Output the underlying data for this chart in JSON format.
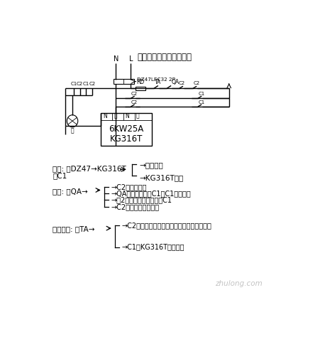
{
  "title": "路灯按鈕接触器联锁电路",
  "bg_color": "#ffffff",
  "text_color": "#000000",
  "auto_label1": "自动: 合DZ47→KG316T",
  "auto_label2": "带C1",
  "auto_branch1": "→主触头合",
  "auto_branch2": "→KG316T控制",
  "manual_label": "手动: 合QA→",
  "manual_texts": [
    "→C2副触头自锁",
    "→QA联锁常闭断开C1，C1主触头断",
    "→刘2联锁常闭副触头断开C1",
    "→C2主触头合手动亮灯"
  ],
  "stop_label": "手动停止: 合TA→",
  "stop_texts": [
    "→C2失电复位，副联锁常闭复位，回原来状态",
    "→C1由KG316T接出控制"
  ],
  "watermark": "zhulong.com",
  "dz47_label": "DZ47LEC32 2P",
  "rd_label": "RD",
  "ta_label": "TA",
  "qa_label": "QA",
  "n_label": "N",
  "l_label": "L",
  "kg_line1": "6KW25A",
  "kg_line2": "KG316T",
  "kg_n1": "N",
  "kg_jin": "进",
  "kg_n2": "N",
  "kg_chu": "出",
  "lamp_label": "灯",
  "c1_label": "C1",
  "c2_label": "C2"
}
